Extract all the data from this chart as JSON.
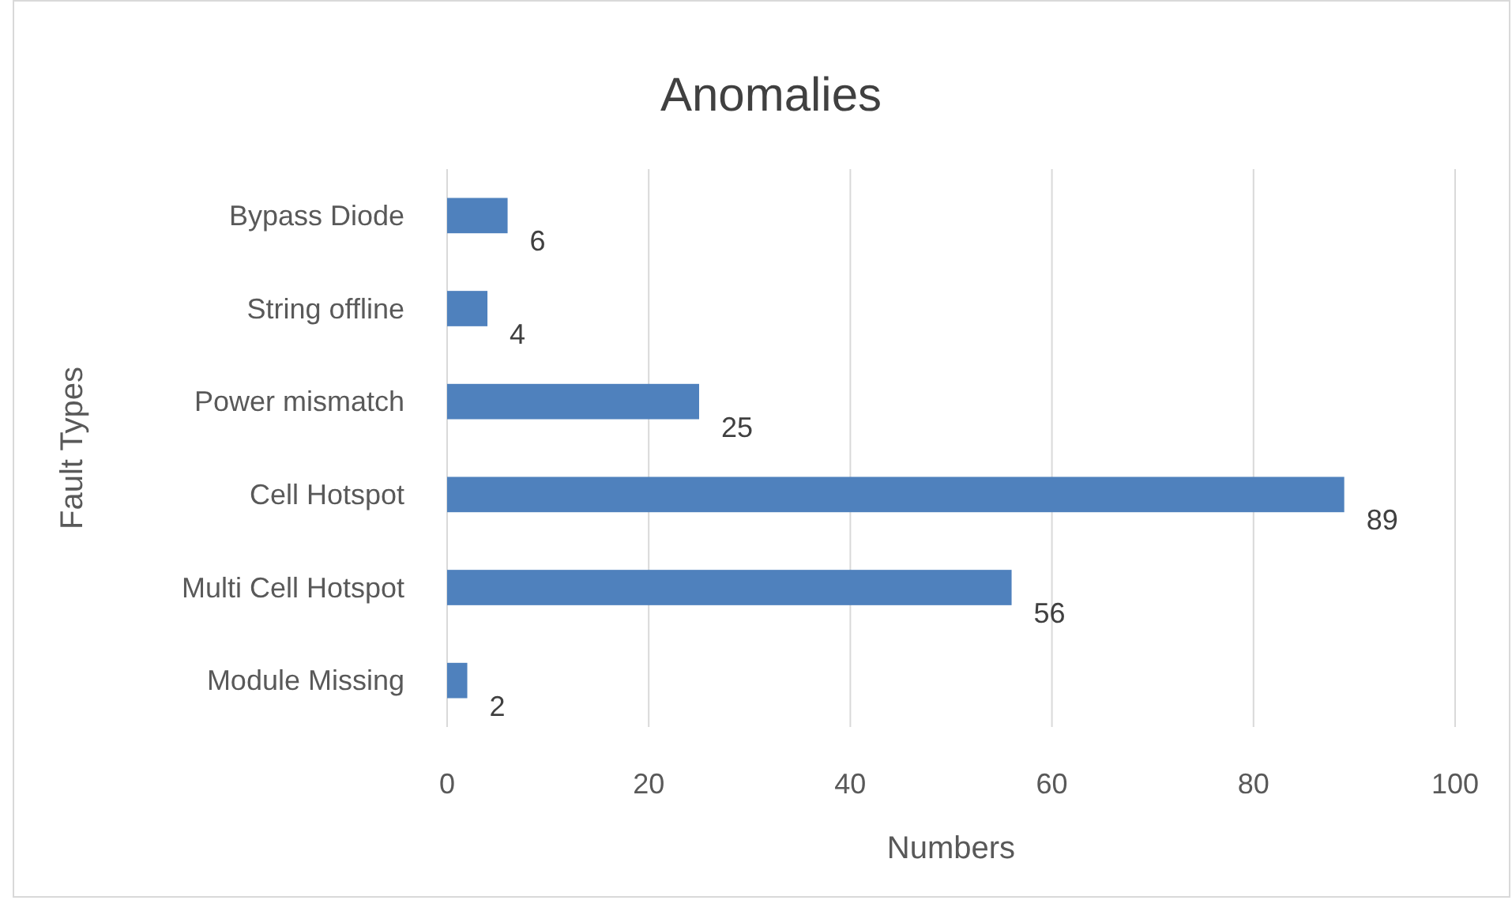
{
  "chart_data": {
    "type": "bar",
    "title": "Anomalies",
    "xlabel": "Numbers",
    "ylabel": "Fault Types",
    "orientation": "horizontal",
    "categories": [
      "Bypass Diode",
      "String offline",
      "Power mismatch",
      "Cell Hotspot",
      "Multi Cell Hotspot",
      "Module Missing"
    ],
    "values": [
      6,
      4,
      25,
      89,
      56,
      2
    ],
    "color": "#4f81bd",
    "xlim": [
      0,
      100
    ],
    "xticks": [
      0,
      20,
      40,
      60,
      80,
      100
    ],
    "grid": "x",
    "data_labels": true
  }
}
